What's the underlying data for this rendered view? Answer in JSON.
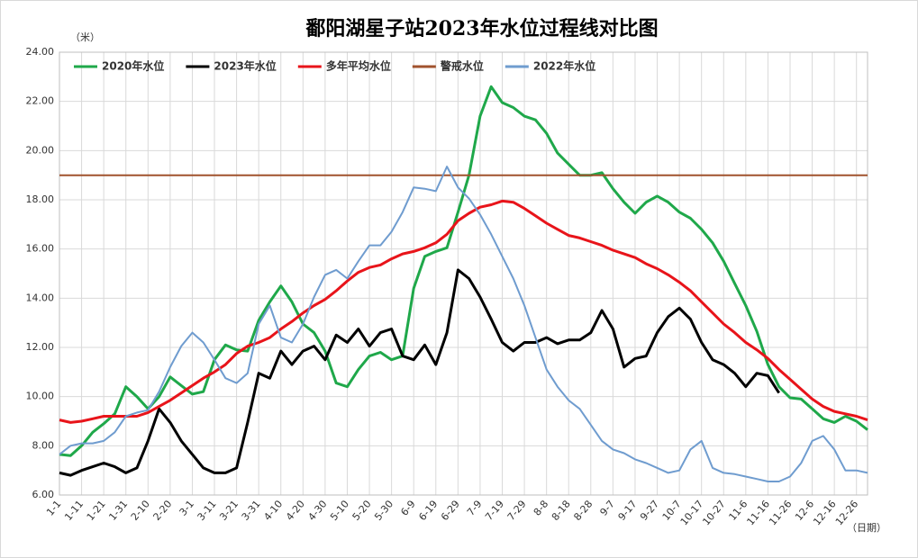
{
  "chart_data": {
    "type": "line",
    "title": "鄱阳湖星子站2023年水位过程线对比图",
    "y_unit": "（米）",
    "x_unit": "（日期）",
    "categories": [
      "1-1",
      null,
      "1-11",
      null,
      "1-21",
      null,
      "1-31",
      null,
      "2-10",
      null,
      "2-20",
      null,
      "3-1",
      null,
      "3-11",
      null,
      "3-21",
      null,
      "3-31",
      null,
      "4-10",
      null,
      "4-20",
      null,
      "4-30",
      null,
      "5-10",
      null,
      "5-20",
      null,
      "5-30",
      null,
      "6-9",
      null,
      "6-19",
      null,
      "6-29",
      null,
      "7-9",
      null,
      "7-19",
      null,
      "7-29",
      null,
      "8-8",
      null,
      "8-18",
      null,
      "8-28",
      null,
      "9-7",
      null,
      "9-17",
      null,
      "9-27",
      null,
      "10-7",
      null,
      "10-17",
      null,
      "10-27",
      null,
      "11-6",
      null,
      "11-16",
      null,
      "11-26",
      null,
      "12-6",
      null,
      "12-16",
      null,
      "12-26",
      null
    ],
    "ylim": [
      6,
      24
    ],
    "yticks": [
      {
        "value": 6,
        "label": "6.00"
      },
      {
        "value": 8,
        "label": "8.00"
      },
      {
        "value": 10,
        "label": "10.00"
      },
      {
        "value": 12,
        "label": "12.00"
      },
      {
        "value": 14,
        "label": "14.00"
      },
      {
        "value": 16,
        "label": "16.00"
      },
      {
        "value": 18,
        "label": "18.00"
      },
      {
        "value": 20,
        "label": "20.00"
      },
      {
        "value": 22,
        "label": "22.00"
      },
      {
        "value": 24,
        "label": "24.00"
      }
    ],
    "grid": true,
    "legend": "top-left",
    "series": [
      {
        "name": "2020年水位",
        "color": "#1fa84a",
        "values": [
          7.65,
          7.6,
          8.0,
          8.55,
          8.9,
          9.3,
          10.4,
          10.0,
          9.5,
          10.0,
          10.8,
          10.45,
          10.1,
          10.2,
          11.5,
          12.1,
          11.9,
          11.85,
          13.1,
          13.85,
          14.5,
          13.85,
          12.95,
          12.6,
          11.85,
          10.55,
          10.4,
          11.1,
          11.65,
          11.8,
          11.5,
          11.65,
          14.4,
          15.7,
          15.9,
          16.05,
          17.5,
          19.0,
          21.4,
          22.6,
          21.95,
          21.75,
          21.4,
          21.25,
          20.7,
          19.9,
          19.45,
          19.0,
          19.0,
          19.1,
          18.45,
          17.9,
          17.45,
          17.9,
          18.15,
          17.9,
          17.5,
          17.25,
          16.8,
          16.25,
          15.5,
          14.6,
          13.7,
          12.65,
          11.3,
          10.4,
          9.95,
          9.9,
          9.5,
          9.1,
          8.95,
          9.2,
          9.0,
          8.65
        ]
      },
      {
        "name": "2023年水位",
        "color": "#000000",
        "values": [
          6.9,
          6.8,
          7.0,
          7.15,
          7.3,
          7.15,
          6.9,
          7.1,
          8.2,
          9.5,
          8.95,
          8.2,
          7.65,
          7.1,
          6.9,
          6.9,
          7.1,
          8.95,
          10.95,
          10.75,
          11.85,
          11.3,
          11.85,
          12.05,
          11.5,
          12.5,
          12.2,
          12.75,
          12.05,
          12.6,
          12.75,
          11.65,
          11.5,
          12.1,
          11.3,
          12.6,
          15.15,
          14.8,
          14.05,
          13.15,
          12.2,
          11.85,
          12.2,
          12.2,
          12.4,
          12.15,
          12.3,
          12.3,
          12.6,
          13.5,
          12.75,
          11.2,
          11.55,
          11.65,
          12.6,
          13.25,
          13.6,
          13.15,
          12.2,
          11.5,
          11.3,
          10.95,
          10.4,
          10.95,
          10.85,
          10.15,
          null,
          null,
          null,
          null,
          null,
          null,
          null,
          null
        ]
      },
      {
        "name": "多年平均水位",
        "color": "#e8141a",
        "values": [
          9.05,
          8.95,
          9.0,
          9.1,
          9.2,
          9.2,
          9.2,
          9.2,
          9.35,
          9.6,
          9.85,
          10.15,
          10.45,
          10.75,
          11.0,
          11.3,
          11.75,
          12.05,
          12.2,
          12.4,
          12.75,
          13.05,
          13.4,
          13.7,
          13.95,
          14.3,
          14.7,
          15.05,
          15.25,
          15.35,
          15.6,
          15.8,
          15.9,
          16.05,
          16.25,
          16.6,
          17.15,
          17.45,
          17.7,
          17.8,
          17.95,
          17.9,
          17.65,
          17.35,
          17.05,
          16.8,
          16.55,
          16.45,
          16.3,
          16.15,
          15.95,
          15.8,
          15.65,
          15.4,
          15.2,
          14.95,
          14.65,
          14.3,
          13.85,
          13.4,
          12.95,
          12.6,
          12.2,
          11.9,
          11.55,
          11.1,
          10.7,
          10.3,
          9.9,
          9.6,
          9.4,
          9.3,
          9.2,
          9.05
        ]
      },
      {
        "name": "警戒水位",
        "color": "#a0522d",
        "values": [
          19,
          19,
          19,
          19,
          19,
          19,
          19,
          19,
          19,
          19,
          19,
          19,
          19,
          19,
          19,
          19,
          19,
          19,
          19,
          19,
          19,
          19,
          19,
          19,
          19,
          19,
          19,
          19,
          19,
          19,
          19,
          19,
          19,
          19,
          19,
          19,
          19,
          19,
          19,
          19,
          19,
          19,
          19,
          19,
          19,
          19,
          19,
          19,
          19,
          19,
          19,
          19,
          19,
          19,
          19,
          19,
          19,
          19,
          19,
          19,
          19,
          19,
          19,
          19,
          19,
          19,
          19,
          19,
          19,
          19,
          19,
          19,
          19,
          19
        ]
      },
      {
        "name": "2022年水位",
        "color": "#6f9ccf",
        "values": [
          7.65,
          8.0,
          8.1,
          8.1,
          8.2,
          8.55,
          9.2,
          9.35,
          9.45,
          10.2,
          11.2,
          12.05,
          12.6,
          12.2,
          11.5,
          10.75,
          10.55,
          10.95,
          12.95,
          13.7,
          12.4,
          12.2,
          12.95,
          14.05,
          14.95,
          15.15,
          14.8,
          15.5,
          16.15,
          16.15,
          16.7,
          17.5,
          18.5,
          18.45,
          18.35,
          19.35,
          18.5,
          18.05,
          17.4,
          16.6,
          15.7,
          14.8,
          13.7,
          12.4,
          11.1,
          10.4,
          9.85,
          9.5,
          8.85,
          8.2,
          7.85,
          7.7,
          7.45,
          7.3,
          7.1,
          6.9,
          7.0,
          7.85,
          8.2,
          7.1,
          6.9,
          6.85,
          6.75,
          6.65,
          6.55,
          6.55,
          6.75,
          7.3,
          8.2,
          8.4,
          7.85,
          7.0,
          7.0,
          6.9
        ]
      }
    ]
  }
}
